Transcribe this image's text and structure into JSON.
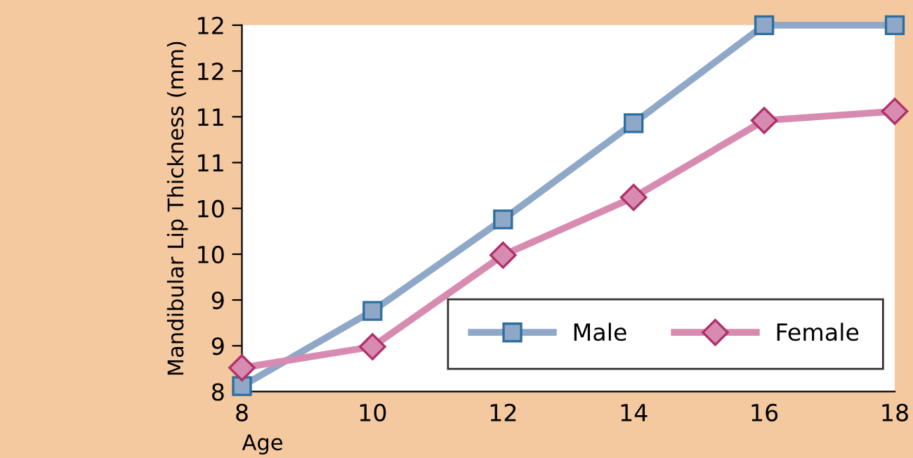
{
  "chart_data": {
    "type": "line",
    "xlabel": "Age",
    "ylabel": "Mandibular Lip Thickness (mm)",
    "x": [
      8,
      10,
      12,
      14,
      16,
      18
    ],
    "series": [
      {
        "name": "Male",
        "color": "#8fa8c8",
        "marker": "square",
        "values": [
          8.06,
          8.88,
          9.88,
          10.93,
          12.0,
          12.0
        ]
      },
      {
        "name": "Female",
        "color": "#d88bb0",
        "marker": "diamond",
        "values": [
          8.26,
          8.49,
          9.49,
          10.12,
          10.96,
          11.06
        ]
      }
    ],
    "xlim": [
      8,
      18
    ],
    "xticks": [
      8,
      10,
      12,
      14,
      16,
      18
    ],
    "ylim": [
      8,
      12
    ],
    "yticks": [
      8,
      {
        "value": 8.5,
        "label": "9"
      },
      9,
      {
        "value": 9.5,
        "label": "10"
      },
      10,
      {
        "value": 10.5,
        "label": "11"
      },
      11,
      {
        "value": 11.5,
        "label": "12"
      },
      12
    ],
    "grid": false,
    "legend": "bottom right",
    "line_style": "solid"
  }
}
